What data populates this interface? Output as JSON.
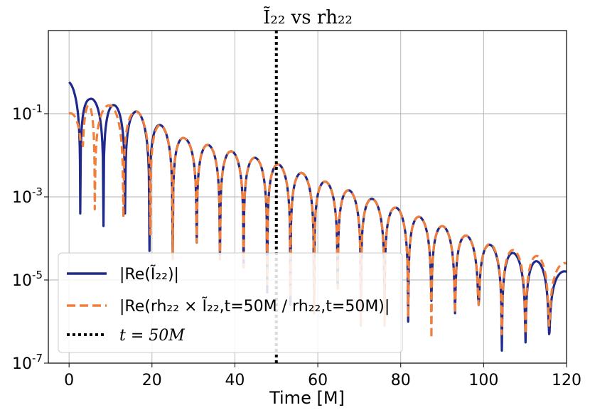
{
  "chart_data": {
    "type": "line",
    "title": "Ĩ₂₂ vs rh₂₂",
    "xlabel": "Time [M]",
    "ylabel": "",
    "xlim": [
      -5,
      120
    ],
    "ylim_log10": [
      -7,
      1
    ],
    "yscale": "log",
    "grid": true,
    "legend_position": "lower-left",
    "x_ticks": [
      0,
      20,
      40,
      60,
      80,
      100,
      120
    ],
    "y_ticks": [
      {
        "exp": -7,
        "label": "10-7"
      },
      {
        "exp": -5,
        "label": "10-5"
      },
      {
        "exp": -3,
        "label": "10-3"
      },
      {
        "exp": -1,
        "label": "10-1"
      }
    ],
    "vline": {
      "x": 50,
      "label": "t = 50M",
      "color": "#000000",
      "style": "dotted"
    },
    "series": [
      {
        "name": "|Re(Ĩ₂₂)|",
        "color": "#1f2a8c",
        "style": "solid",
        "envelope_peaks_log10": [
          {
            "x": 0,
            "y": -0.24
          },
          {
            "x": 5,
            "y": -0.63
          },
          {
            "x": 16.5,
            "y": -0.95
          },
          {
            "x": 22,
            "y": -1.27
          },
          {
            "x": 28,
            "y": -1.6
          },
          {
            "x": 50,
            "y": -2.2
          },
          {
            "x": 80,
            "y": -3.3
          },
          {
            "x": 100,
            "y": -4.1
          },
          {
            "x": 120,
            "y": -4.8
          }
        ],
        "zeros": [
          2.7,
          8.3,
          13.5,
          19.4,
          25,
          30.8,
          36.4,
          42.1,
          47.8,
          53.4,
          59.1,
          64.8,
          70.4,
          76.1,
          81.8,
          87.4,
          93.1,
          98.8,
          104.4,
          110.1,
          115.8
        ],
        "zero_depth_log10": [
          -3.4,
          -3.7,
          -3.4,
          -4.3,
          -4.5,
          -4.1,
          -4.5,
          -4.7,
          -5.3,
          -5.6,
          -5.8,
          -5.2,
          -5.6,
          -5.5,
          -6.0,
          -5.5,
          -5.8,
          -5.6,
          -6.7,
          -6.5,
          -6.3
        ]
      },
      {
        "name": "|Re(rh₂₂ × Ĩ₂₂,t=50M / rh₂₂,t=50M)|",
        "color": "#f07f3c",
        "style": "dashed",
        "envelope_peaks_log10": [
          {
            "x": 0,
            "y": -1.0
          },
          {
            "x": 4.5,
            "y": -0.8
          },
          {
            "x": 10.5,
            "y": -0.8
          },
          {
            "x": 16.5,
            "y": -0.95
          },
          {
            "x": 22,
            "y": -1.27
          },
          {
            "x": 28,
            "y": -1.6
          },
          {
            "x": 50,
            "y": -2.2
          },
          {
            "x": 80,
            "y": -3.3
          },
          {
            "x": 100,
            "y": -4.1
          },
          {
            "x": 120,
            "y": -4.6
          }
        ],
        "zeros": [
          3.2,
          6.2,
          13.1,
          19.6,
          25,
          30.8,
          36.4,
          42.1,
          47.8,
          53.4,
          59.1,
          64.8,
          70.4,
          76.1,
          81.8,
          87.4,
          93.1,
          98.8,
          104.4,
          110.1,
          115.8
        ],
        "zero_depth_log10": [
          -1.7,
          -3.3,
          -3.5,
          -3.9,
          -4.5,
          -4.1,
          -4.5,
          -4.7,
          -5.1,
          -5.4,
          -5.8,
          -5.2,
          -6.1,
          -6.1,
          -5.9,
          -6.4,
          -5.8,
          -5.6,
          -6.3,
          -6.3,
          -6.1
        ]
      }
    ]
  },
  "legend": {
    "entry1": "|Re(Ĩ₂₂)|",
    "entry2": "|Re(rh₂₂ × Ĩ₂₂,t=50M / rh₂₂,t=50M)|",
    "entry3": "t = 50M"
  }
}
